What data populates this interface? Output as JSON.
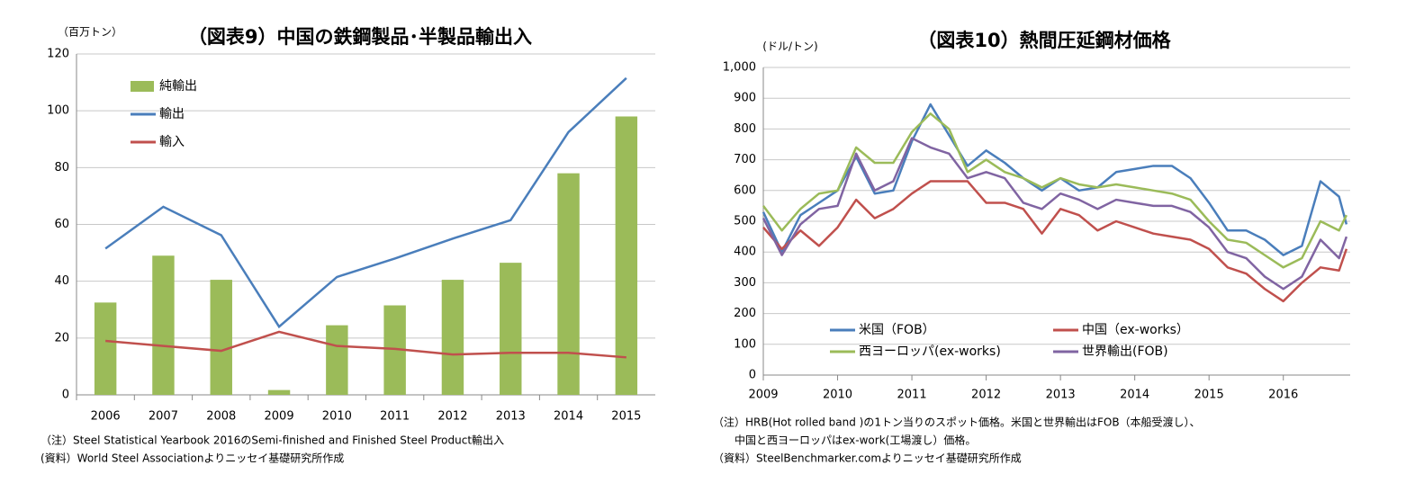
{
  "chart_data": [
    {
      "type": "bar",
      "title": "（図表9）中国の鉄鋼製品･半製品輸出入",
      "y_label": "（百万トン）",
      "categories": [
        "2006",
        "2007",
        "2008",
        "2009",
        "2010",
        "2011",
        "2012",
        "2013",
        "2014",
        "2015"
      ],
      "series": [
        {
          "name": "純輸出",
          "color": "#9bbb59",
          "kind": "bar",
          "values": [
            32.5,
            49,
            40.5,
            1.7,
            24.5,
            31.5,
            40.5,
            46.5,
            78,
            98
          ]
        },
        {
          "name": "輸出",
          "color": "#4a7ebb",
          "kind": "line",
          "values": [
            51.5,
            66.2,
            56.2,
            24,
            41.5,
            48,
            55,
            61.5,
            92.5,
            111.5
          ]
        },
        {
          "name": "輸入",
          "color": "#c0504d",
          "kind": "line",
          "values": [
            19,
            17.2,
            15.5,
            22.2,
            17.2,
            16.2,
            14.2,
            14.8,
            14.8,
            13.2
          ]
        }
      ],
      "ylim": [
        0,
        120
      ],
      "yticks": [
        0,
        20,
        40,
        60,
        80,
        100,
        120
      ],
      "grid": true,
      "legend": "top-left",
      "notes": [
        "（注）Steel Statistical Yearbook 2016のSemi-finished and Finished Steel Product輸出入",
        "(資料）World Steel Associationよりニッセイ基礎研究所作成"
      ]
    },
    {
      "type": "line",
      "title": "（図表10）熱間圧延鋼材価格",
      "y_label": "(ドル/トン)",
      "x": [
        2009,
        2009.25,
        2009.5,
        2009.75,
        2010,
        2010.25,
        2010.5,
        2010.75,
        2011,
        2011.25,
        2011.5,
        2011.75,
        2012,
        2012.25,
        2012.5,
        2012.75,
        2013,
        2013.25,
        2013.5,
        2013.75,
        2014,
        2014.25,
        2014.5,
        2014.75,
        2015,
        2015.25,
        2015.5,
        2015.75,
        2016,
        2016.25,
        2016.5,
        2016.75,
        2016.85
      ],
      "series": [
        {
          "name": "米国（FOB）",
          "color": "#4a7ebb",
          "values": [
            530,
            400,
            520,
            560,
            600,
            710,
            590,
            600,
            760,
            880,
            780,
            680,
            730,
            690,
            640,
            600,
            640,
            600,
            610,
            660,
            670,
            680,
            680,
            640,
            560,
            470,
            470,
            440,
            390,
            420,
            630,
            580,
            490
          ]
        },
        {
          "name": "中国（ex-works）",
          "color": "#c0504d",
          "values": [
            480,
            410,
            470,
            420,
            480,
            570,
            510,
            540,
            590,
            630,
            630,
            630,
            560,
            560,
            540,
            460,
            540,
            520,
            470,
            500,
            480,
            460,
            450,
            440,
            410,
            350,
            330,
            280,
            240,
            300,
            350,
            340,
            410
          ]
        },
        {
          "name": "西ヨーロッパ(ex-works)",
          "color": "#9bbb59",
          "values": [
            550,
            470,
            540,
            590,
            600,
            740,
            690,
            690,
            790,
            850,
            800,
            660,
            700,
            660,
            640,
            610,
            640,
            620,
            610,
            620,
            610,
            600,
            590,
            570,
            500,
            440,
            430,
            390,
            350,
            380,
            500,
            470,
            520
          ]
        },
        {
          "name": "世界輸出(FOB)",
          "color": "#8064a2",
          "values": [
            510,
            390,
            490,
            540,
            550,
            720,
            600,
            630,
            770,
            740,
            720,
            640,
            660,
            640,
            560,
            540,
            590,
            570,
            540,
            570,
            560,
            550,
            550,
            530,
            480,
            400,
            380,
            320,
            280,
            320,
            440,
            380,
            450
          ]
        }
      ],
      "xlim": [
        2009,
        2016.9
      ],
      "xticks": [
        2009,
        2010,
        2011,
        2012,
        2013,
        2014,
        2015,
        2016
      ],
      "ylim": [
        0,
        1000
      ],
      "yticks": [
        0,
        100,
        200,
        300,
        400,
        500,
        600,
        700,
        800,
        900,
        {
          "value": 1000,
          "label": "1,000"
        }
      ],
      "grid": true,
      "legend": "bottom-left",
      "notes": [
        "（注）HRB(Hot rolled band )の1トン当りのスポット価格。米国と世界輸出はFOB（本船受渡し）、",
        "　　中国と西ヨーロッパはex-work(工場渡し）価格。",
        "（資料）SteelBenchmarker.comよりニッセイ基礎研究所作成"
      ]
    }
  ]
}
